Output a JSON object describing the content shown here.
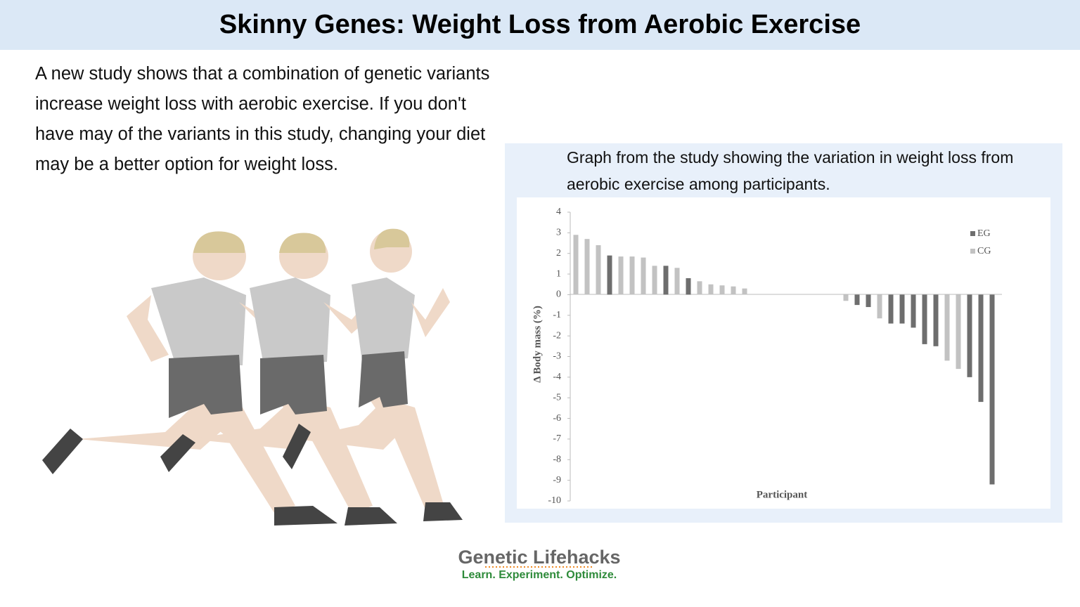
{
  "header": {
    "title": "Skinny Genes: Weight Loss from Aerobic Exercise"
  },
  "intro": "A new study shows that a combination of genetic variants increase weight loss with aerobic exercise. If you don't have may of the variants in this study, changing your diet may be a better option for weight loss.",
  "caption": "Graph from the study showing the variation in weight loss from aerobic exercise among participants.",
  "chart_data": {
    "type": "bar",
    "xlabel": "Participant",
    "ylabel": "Δ Body mass (%)",
    "categories": [
      null,
      null,
      null,
      null,
      null,
      null,
      null,
      null,
      null,
      null,
      null,
      null,
      null,
      null,
      null,
      null,
      null,
      null,
      null,
      null,
      null,
      null,
      null,
      null,
      null,
      null,
      null,
      null,
      null,
      null,
      null,
      null,
      null,
      null,
      null,
      null,
      null,
      null
    ],
    "series": [
      {
        "name": "EG",
        "color": "#6e6e6e",
        "values": [
          null,
          null,
          null,
          1.9,
          null,
          null,
          null,
          null,
          1.4,
          null,
          0.8,
          null,
          null,
          null,
          null,
          null,
          null,
          null,
          null,
          null,
          null,
          null,
          null,
          null,
          null,
          -0.5,
          -0.6,
          null,
          -1.4,
          -1.4,
          -1.6,
          -2.4,
          -2.5,
          null,
          null,
          -4.0,
          -5.2,
          -9.2
        ]
      },
      {
        "name": "CG",
        "color": "#c2c2c2",
        "values": [
          2.9,
          2.7,
          2.4,
          null,
          1.85,
          1.85,
          1.8,
          1.4,
          null,
          1.3,
          null,
          0.65,
          0.5,
          0.45,
          0.4,
          0.3,
          null,
          null,
          null,
          null,
          null,
          null,
          null,
          null,
          -0.3,
          null,
          null,
          -1.15,
          null,
          null,
          null,
          null,
          null,
          -3.2,
          -3.6,
          null,
          null,
          null
        ]
      }
    ],
    "ylim": [
      -10,
      4
    ],
    "yticks": [
      4,
      3,
      2,
      1,
      0,
      -1,
      -2,
      -3,
      -4,
      -5,
      -6,
      -7,
      -8,
      -9,
      -10
    ],
    "legend": "upper right",
    "grid": false
  },
  "logo": {
    "name": "Genetic Lifehacks",
    "tagline": "Learn. Experiment. Optimize."
  }
}
